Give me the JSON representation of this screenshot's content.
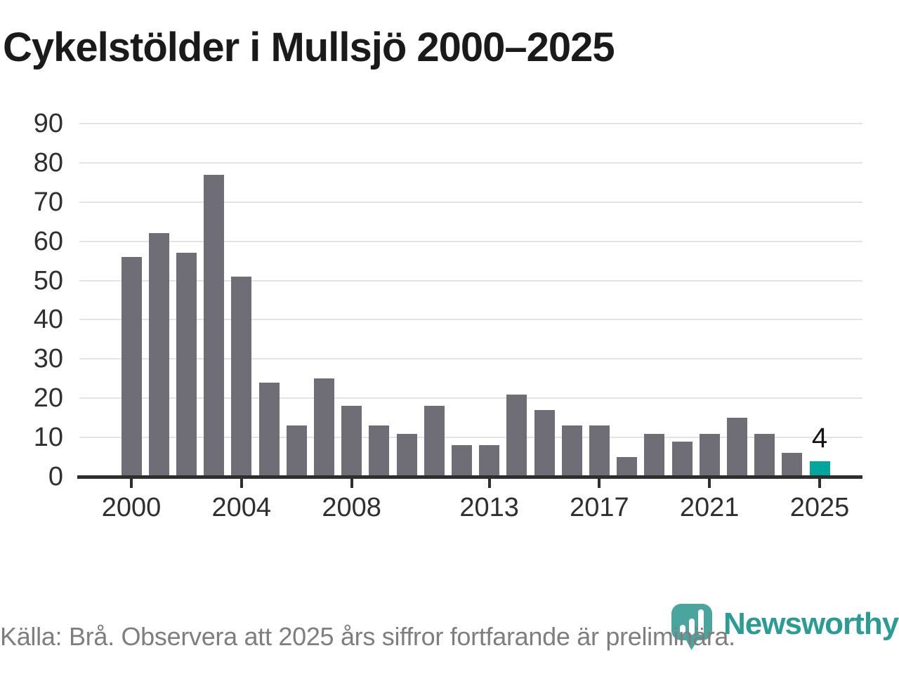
{
  "title": "Cykelstölder i Mullsjö 2000–2025",
  "chart_data": {
    "type": "bar",
    "categories": [
      "2000",
      "2001",
      "2002",
      "2003",
      "2004",
      "2005",
      "2006",
      "2007",
      "2008",
      "2009",
      "2010",
      "2011",
      "2012",
      "2013",
      "2014",
      "2015",
      "2016",
      "2017",
      "2018",
      "2019",
      "2020",
      "2021",
      "2022",
      "2023",
      "2024",
      "2025"
    ],
    "values": [
      56,
      62,
      57,
      77,
      51,
      24,
      13,
      25,
      18,
      13,
      11,
      18,
      8,
      8,
      21,
      17,
      13,
      13,
      5,
      11,
      9,
      11,
      15,
      11,
      6,
      4
    ],
    "title": "Cykelstölder i Mullsjö 2000–2025",
    "xlabel": "",
    "ylabel": "",
    "ylim": [
      0,
      90
    ],
    "y_ticks": [
      0,
      10,
      20,
      30,
      40,
      50,
      60,
      70,
      80,
      90
    ],
    "x_tick_labels": [
      "2000",
      "2004",
      "2008",
      "2013",
      "2017",
      "2021",
      "2025"
    ],
    "grid": "horizontal",
    "legend": "none",
    "highlight_category": "2025",
    "annotation": {
      "label": "4",
      "category": "2025"
    }
  },
  "colors": {
    "bar": "#6f6d75",
    "highlight_bar": "#00a69c",
    "axis": "#2e2e2e",
    "grid": "#e4e4e4",
    "tick_text": "#2f2f2f",
    "annotation_text": "#141414",
    "footer_text": "#7e7e7e",
    "brand_teal": "#2b9c94",
    "icon_teal": "#40a09a"
  },
  "footer": {
    "source": "Källa: Brå. Observera att 2025 års siffror fortfarande är preliminära."
  },
  "branding": {
    "name": "Newsworthy",
    "icon": "bar-chart-speech-bubble-icon"
  }
}
